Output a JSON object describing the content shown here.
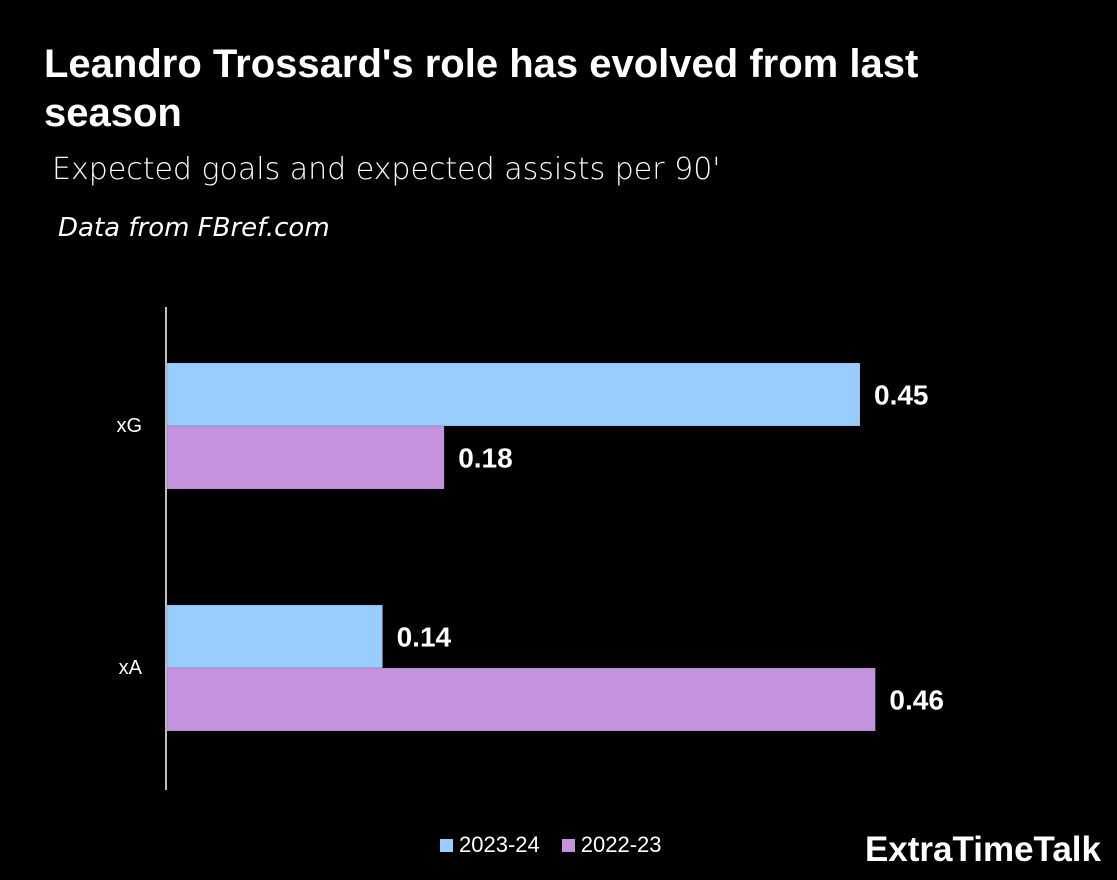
{
  "title": "Leandro Trossard's role has evolved from last season",
  "subtitle": "Expected goals and expected assists per 90'",
  "source": "Data from FBref.com",
  "brand": "ExtraTimeTalk",
  "colors": {
    "background": "#000000",
    "series_2023_24": "#99ccff",
    "series_2022_23": "#c593dd",
    "text": "#ffffff"
  },
  "chart_data": {
    "type": "bar",
    "orientation": "horizontal",
    "categories": [
      "xG",
      "xA"
    ],
    "series": [
      {
        "name": "2023-24",
        "values": [
          0.45,
          0.14
        ],
        "color": "#99ccff"
      },
      {
        "name": "2022-23",
        "values": [
          0.18,
          0.46
        ],
        "color": "#c593dd"
      }
    ],
    "data_labels": [
      [
        "0.45",
        "0.14"
      ],
      [
        "0.18",
        "0.46"
      ]
    ],
    "xlim": [
      0,
      0.5
    ],
    "xlabel": "",
    "ylabel": "",
    "grid": false,
    "legend_position": "bottom"
  },
  "legend": [
    {
      "label": "2023-24",
      "color": "#99ccff"
    },
    {
      "label": "2022-23",
      "color": "#c593dd"
    }
  ]
}
